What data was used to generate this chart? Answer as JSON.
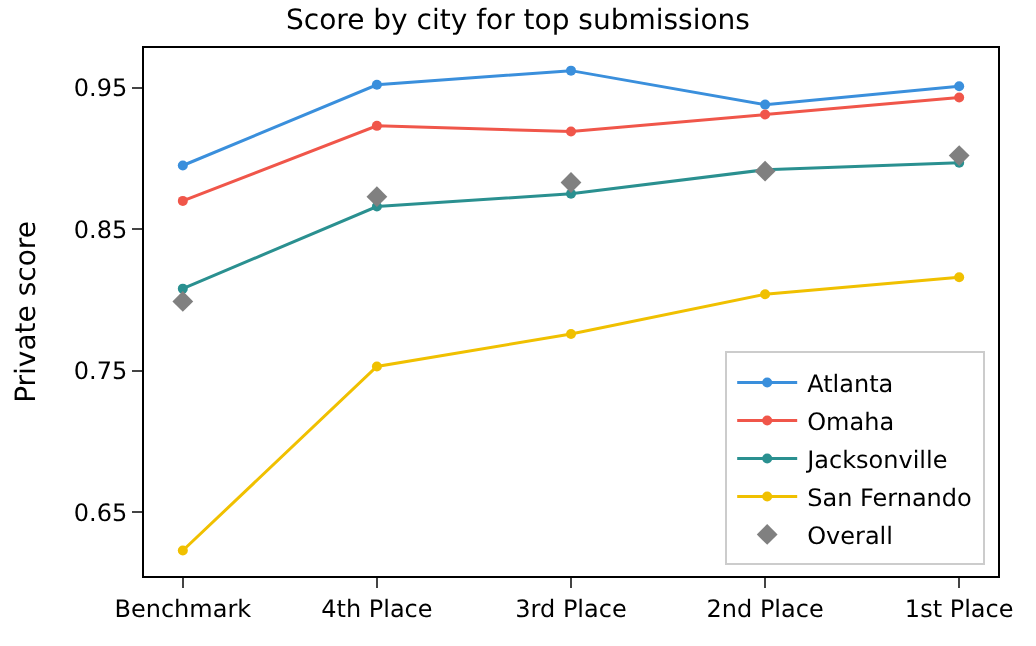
{
  "chart_data": {
    "type": "line",
    "title": "Score by city for top submissions",
    "ylabel": "Private score",
    "categories": [
      "Benchmark",
      "4th Place",
      "3rd Place",
      "2nd Place",
      "1st Place"
    ],
    "ylim": [
      0.605,
      0.978
    ],
    "yticks": [
      0.65,
      0.75,
      0.85,
      0.95
    ],
    "legend": "bottom right",
    "series": [
      {
        "name": "Atlanta",
        "color": "#3a8fdc",
        "marker": "circle",
        "values": [
          0.895,
          0.952,
          0.962,
          0.938,
          0.951
        ]
      },
      {
        "name": "Omaha",
        "color": "#f0564a",
        "marker": "circle",
        "values": [
          0.87,
          0.923,
          0.919,
          0.931,
          0.943
        ]
      },
      {
        "name": "Jacksonville",
        "color": "#2a9090",
        "marker": "circle",
        "values": [
          0.808,
          0.866,
          0.875,
          0.892,
          0.897
        ]
      },
      {
        "name": "San Fernando",
        "color": "#f0c000",
        "marker": "circle",
        "values": [
          0.623,
          0.753,
          0.776,
          0.804,
          0.816
        ]
      },
      {
        "name": "Overall",
        "type": "scatter",
        "color": "#808080",
        "marker": "diamond",
        "values": [
          0.799,
          0.873,
          0.883,
          0.891,
          0.902
        ]
      }
    ]
  }
}
